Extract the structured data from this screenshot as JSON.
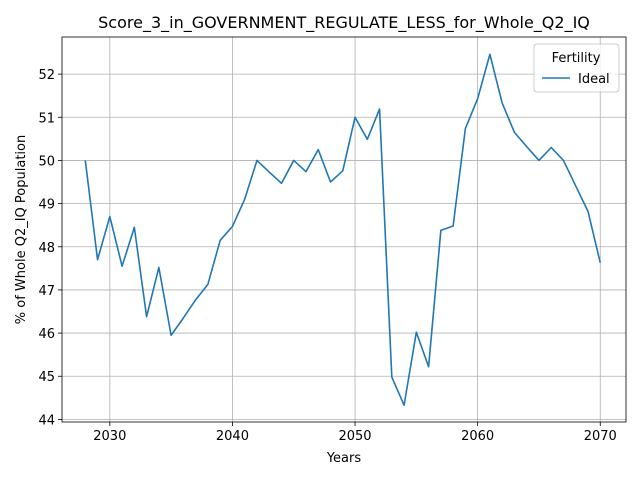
{
  "chart_data": {
    "type": "line",
    "title": "Score_3_in_GOVERNMENT_REGULATE_LESS_for_Whole_Q2_IQ",
    "xlabel": "Years",
    "ylabel": "% of Whole Q2_IQ Population",
    "xlim": [
      2026.1,
      2072.1
    ],
    "ylim": [
      43.94,
      52.86
    ],
    "xticks": [
      2030,
      2040,
      2050,
      2060,
      2070
    ],
    "yticks": [
      44,
      45,
      46,
      47,
      48,
      49,
      50,
      51,
      52,
      53
    ],
    "yticks_visible": [
      44,
      45,
      46,
      47,
      48,
      49,
      50,
      51,
      52
    ],
    "grid": true,
    "legend": {
      "title": "Fertility",
      "placement": "top-right"
    },
    "series": [
      {
        "name": "Ideal",
        "color": "#1f77b4",
        "x": [
          2028,
          2029,
          2030,
          2031,
          2032,
          2033,
          2034,
          2035,
          2036,
          2037,
          2038,
          2039,
          2040,
          2041,
          2042,
          2043,
          2044,
          2045,
          2046,
          2047,
          2048,
          2049,
          2050,
          2051,
          2052,
          2053,
          2054,
          2055,
          2056,
          2057,
          2058,
          2059,
          2060,
          2061,
          2062,
          2063,
          2064,
          2065,
          2066,
          2067,
          2068,
          2069,
          2070
        ],
        "values": [
          50.0,
          47.7,
          48.7,
          47.55,
          48.45,
          46.38,
          47.52,
          45.95,
          46.35,
          46.77,
          47.13,
          48.15,
          48.47,
          49.1,
          50.0,
          49.73,
          49.47,
          50.0,
          49.74,
          50.25,
          49.5,
          49.76,
          51.0,
          50.49,
          51.19,
          44.98,
          44.33,
          46.02,
          45.22,
          48.38,
          48.48,
          50.74,
          51.43,
          52.46,
          51.33,
          50.65,
          50.32,
          50.0,
          50.3,
          50.0,
          49.41,
          48.82,
          47.63
        ]
      }
    ]
  }
}
